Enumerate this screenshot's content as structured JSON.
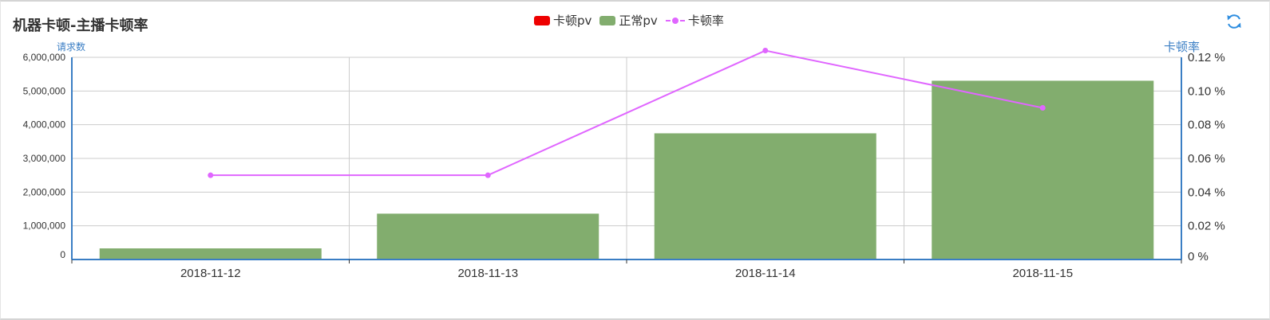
{
  "header": {
    "title": "机器卡顿-主播卡顿率",
    "refresh_icon": "refresh-icon"
  },
  "legend": [
    {
      "label": "卡顿pv",
      "color": "#ee0000",
      "kind": "bar"
    },
    {
      "label": "正常pv",
      "color": "#82ad6e",
      "kind": "bar"
    },
    {
      "label": "卡顿率",
      "color": "#e066ff",
      "kind": "line"
    }
  ],
  "chart_data": {
    "type": "bar",
    "stacked": true,
    "categories": [
      "2018-11-12",
      "2018-11-13",
      "2018-11-14",
      "2018-11-15"
    ],
    "series": [
      {
        "name": "卡顿pv",
        "type": "bar",
        "axis": "left",
        "color": "#ee0000",
        "values": [
          60,
          680,
          4650,
          4770
        ]
      },
      {
        "name": "正常pv",
        "type": "bar",
        "axis": "left",
        "color": "#82ad6e",
        "values": [
          330000,
          1360000,
          3740000,
          5300000
        ]
      },
      {
        "name": "卡顿率",
        "type": "line",
        "axis": "right",
        "color": "#e066ff",
        "values": [
          0.05,
          0.05,
          0.124,
          0.09
        ]
      }
    ],
    "y_left": {
      "label": "请求数",
      "range": [
        0,
        6000000
      ],
      "ticks": [
        "0",
        "1,000,000",
        "2,000,000",
        "3,000,000",
        "4,000,000",
        "5,000,000",
        "6,000,000"
      ]
    },
    "y_right": {
      "label": "卡顿率",
      "range": [
        0,
        0.12
      ],
      "ticks": [
        "0 %",
        "0.02 %",
        "0.04 %",
        "0.06 %",
        "0.08 %",
        "0.10 %",
        "0.12 %"
      ]
    },
    "grid": true,
    "legend_position": "top-center"
  }
}
